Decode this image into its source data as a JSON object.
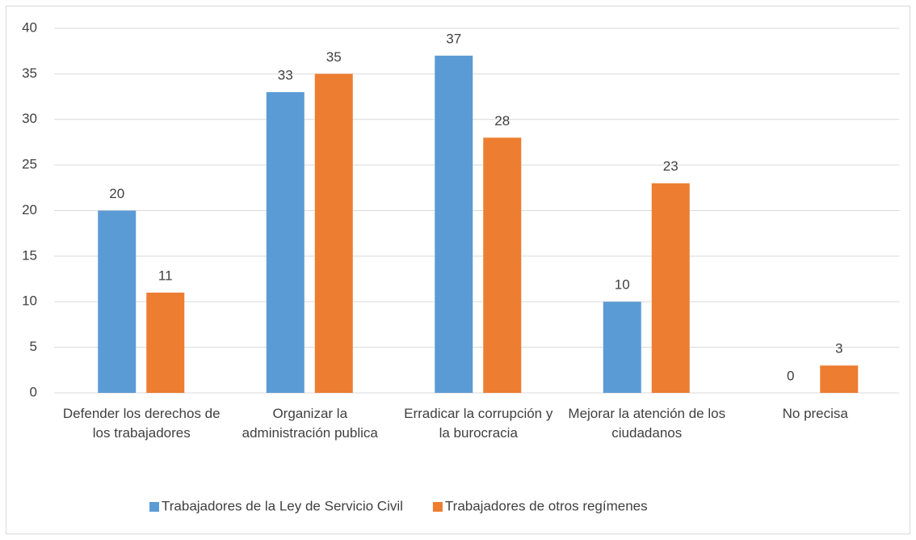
{
  "chart_data": {
    "type": "bar",
    "categories": [
      "Defender los derechos de los trabajadores",
      "Organizar la administración publica",
      "Erradicar la corrupción y la burocracia",
      "Mejorar la atención de los ciudadanos",
      "No precisa"
    ],
    "series": [
      {
        "name": "Trabajadores de la Ley de Servicio Civil",
        "color": "#5b9bd5",
        "values": [
          20,
          33,
          37,
          10,
          0
        ]
      },
      {
        "name": "Trabajadores de otros regímenes",
        "color": "#ed7d31",
        "values": [
          11,
          35,
          28,
          23,
          3
        ]
      }
    ],
    "ylim": [
      0,
      40
    ],
    "yticks": [
      0,
      5,
      10,
      15,
      20,
      25,
      30,
      35,
      40
    ],
    "grid": true,
    "legend": "bottom"
  }
}
